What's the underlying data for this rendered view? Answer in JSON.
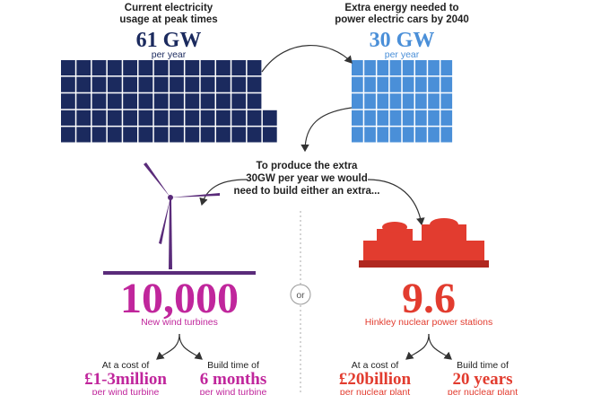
{
  "top": {
    "left": {
      "label": [
        "Current electricity",
        "usage at peak times"
      ],
      "value": "61 GW",
      "unit": "per year"
    },
    "right": {
      "label": [
        "Extra energy needed to",
        "power electric cars by 2040"
      ],
      "value": "30 GW",
      "unit": "per year"
    }
  },
  "middle": {
    "text": [
      "To produce the extra",
      "30GW per year we would",
      "need to build either an extra..."
    ],
    "divider": "or"
  },
  "options": {
    "left": {
      "number": "10,000",
      "caption": "New wind turbines",
      "cost": {
        "label": "At a cost of",
        "value": "£1-3million",
        "unit": "per wind turbine"
      },
      "time": {
        "label": "Build time of",
        "value": "6 months",
        "unit": "per wind turbine"
      }
    },
    "right": {
      "number": "9.6",
      "caption": "Hinkley nuclear power stations",
      "cost": {
        "label": "At a cost of",
        "value": "£20billion",
        "unit": "per nuclear plant"
      },
      "time": {
        "label": "Build time of",
        "value": "20 years",
        "unit": "per nuclear plant"
      }
    }
  }
}
